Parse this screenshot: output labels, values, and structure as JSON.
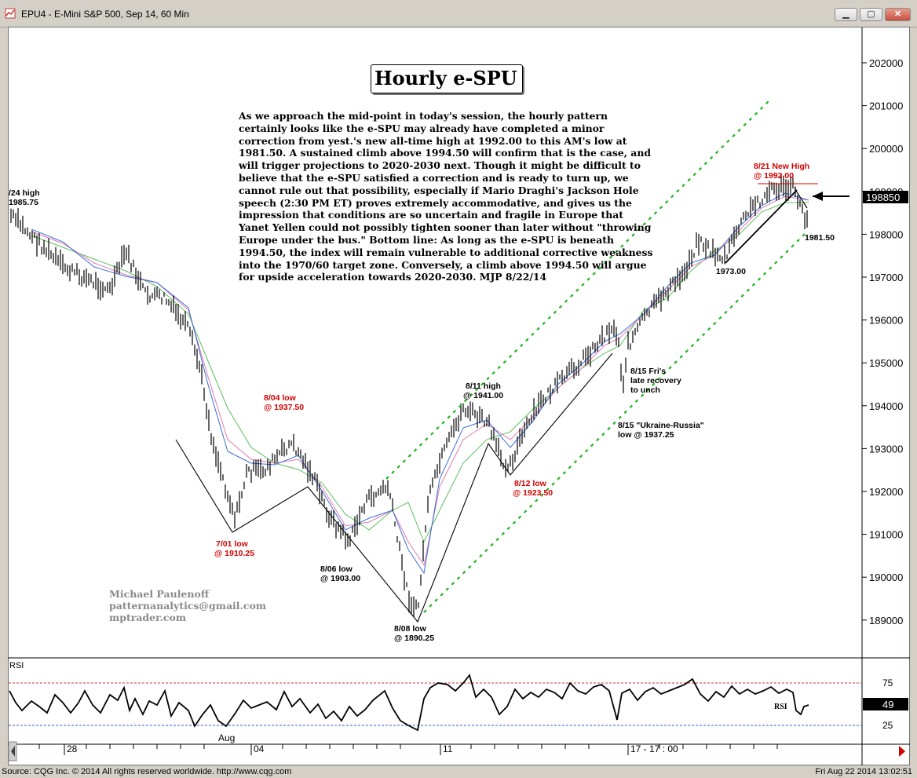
{
  "window": {
    "title": "EPU4 - E-Mini S&P 500, Sep 14, 60 Min"
  },
  "status": {
    "source": "Source: CQG Inc. © 2014 All rights reserved worldwide. http://www.cqg.com",
    "timestamp": "Fri Aug 22 2014 13:02:51"
  },
  "chart_data": {
    "type": "candlestick",
    "title": "Hourly e-SPU",
    "price_axis": {
      "ticks": [
        "202000",
        "201000",
        "200000",
        "199000",
        "198000",
        "197000",
        "196000",
        "195000",
        "194000",
        "193000",
        "192000",
        "191000",
        "190000",
        "189000"
      ],
      "current": "198850"
    },
    "rsi_axis": {
      "label": "RSI",
      "ticks": [
        "75",
        "25"
      ],
      "current": "49",
      "series_label": "RSI"
    },
    "time_axis": {
      "ticks": [
        "28",
        "Aug",
        "04",
        "11",
        "17 - 17 : 00"
      ]
    },
    "annotation_text": "As we approach the mid-point in today's session, the hourly pattern certainly looks like the e-SPU may already have completed a minor correction from yest.'s new all-time high at 1992.00 to this AM's low at 1981.50. A sustained climb above 1994.50 will confirm that is the case, and will trigger projections to 2020-2030 next. Though it might be difficult to believe that the e-SPU satisfied a correction and is ready to turn up, we cannot rule out that possibility, especially if Mario Draghi's Jackson Hole speech (2:30 PM ET) proves extremely accommodative, and gives us the impression that conditions are so uncertain and fragile in Europe that Yanet Yellen could not possibly tighten sooner than later without \"throwing Europe under the bus.\" Bottom line: As long as the e-SPU is beneath 1994.50, the index will remain vulnerable to additional corrective weakness into the 1970/60 target zone. Conversely, a climb above 1994.50 will argue for upside acceleration towards 2020-2030.  MJP  8/22/14",
    "labels": {
      "jul24_high_1": "/24 high",
      "jul24_high_2": "1985.75",
      "aug04_low_1": "8/04 low",
      "aug04_low_2": "@ 1937.50",
      "jul01_low_1": "7/01 low",
      "jul01_low_2": "@ 1910.25",
      "aug06_low_1": "8/06 low",
      "aug06_low_2": "@ 1903.00",
      "aug08_low_1": "8/08 low",
      "aug08_low_2": "@ 1890.25",
      "aug11_high_1": "8/11 high",
      "aug11_high_2": "@ 1941.00",
      "aug12_low_1": "8/12 low",
      "aug12_low_2": "@ 1923.50",
      "aug15_rec_1": "8/15 Fri's",
      "aug15_rec_2": "late recovery",
      "aug15_rec_3": "to unch",
      "aug15_ukr_1": "8/15 \"Ukraine-Russia\"",
      "aug15_ukr_2": "low @ 1937.25",
      "low_1973": "1973.00",
      "aug21_high_1": "8/21 New High",
      "aug21_high_2": "@ 1992.00",
      "low_1981": "1981.50"
    },
    "watermark": [
      "Michael Paulenoff",
      "patternanalytics@gmail.com",
      "mptrader.com"
    ],
    "colors": {
      "up_channel": "#1db51d",
      "annotation_red": "#d40000",
      "ma_green": "#4caf50",
      "ma_pink": "#e07ab0",
      "ma_blue": "#3b6fd8"
    }
  }
}
